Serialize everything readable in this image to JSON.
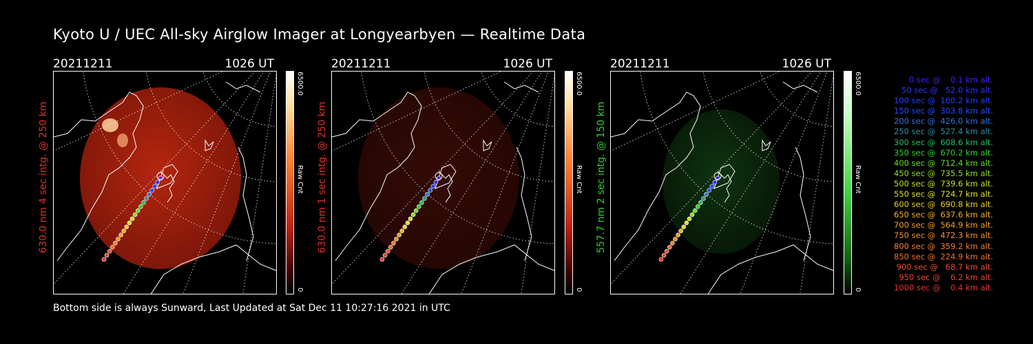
{
  "title": "Kyoto U / UEC All-sky Airglow Imager at Longyearbyen — Realtime Data",
  "footer": "Bottom side is always Sunward, Last Updated at Sat Dec 11 10:27:16 2021 in UTC",
  "panels": [
    {
      "date": "20211211",
      "time": "1026 UT",
      "side_label": "630.0 nm 4 sec intg. @ 250 km",
      "side_color": "#e03020",
      "cbar_max": "6500.0",
      "cbar_min": "0",
      "cbar_unit": "Raw Cnt",
      "tint": "red",
      "intensity": 1.0
    },
    {
      "date": "20211211",
      "time": "1026 UT",
      "side_label": "630.0 nm 1 sec intg. @ 250 km",
      "side_color": "#e03020",
      "cbar_max": "6500.0",
      "cbar_min": "0",
      "cbar_unit": "Raw Cnt",
      "tint": "red",
      "intensity": 0.25
    },
    {
      "date": "20211211",
      "time": "1026 UT",
      "side_label": "557.7 nm 2 sec intg. @ 150 km",
      "side_color": "#30d030",
      "cbar_max": "6500.0",
      "cbar_min": "0",
      "cbar_unit": "Raw Cnt",
      "tint": "green",
      "intensity": 0.5
    }
  ],
  "legend": [
    {
      "text": "   0 sec @    0.1 km alt.",
      "color": "#4020ff"
    },
    {
      "text": "  50 sec @   52.0 km alt.",
      "color": "#3030ff"
    },
    {
      "text": " 100 sec @  160.2 km alt.",
      "color": "#2040ff"
    },
    {
      "text": " 150 sec @  303.8 km alt.",
      "color": "#2050ff"
    },
    {
      "text": " 200 sec @  426.0 km alt.",
      "color": "#3070e0"
    },
    {
      "text": " 250 sec @  527.4 km alt.",
      "color": "#3090a0"
    },
    {
      "text": " 300 sec @  608.6 km alt.",
      "color": "#20c060"
    },
    {
      "text": " 350 sec @  670.2 km alt.",
      "color": "#30d030"
    },
    {
      "text": " 400 sec @  712.4 km alt.",
      "color": "#60e020"
    },
    {
      "text": " 450 sec @  735.5 km alt.",
      "color": "#90e020"
    },
    {
      "text": " 500 sec @  739.6 km alt.",
      "color": "#c0e020"
    },
    {
      "text": " 550 sec @  724.7 km alt.",
      "color": "#e0e020"
    },
    {
      "text": " 600 sec @  690.8 km alt.",
      "color": "#f0d020"
    },
    {
      "text": " 650 sec @  637.6 km alt.",
      "color": "#f0b020"
    },
    {
      "text": " 700 sec @  564.9 km alt.",
      "color": "#f0a020"
    },
    {
      "text": " 750 sec @  472.3 km alt.",
      "color": "#f09020"
    },
    {
      "text": " 800 sec @  359.2 km alt.",
      "color": "#f08030"
    },
    {
      "text": " 850 sec @  224.9 km alt.",
      "color": "#f07030"
    },
    {
      "text": " 900 sec @   68.7 km alt.",
      "color": "#f05030"
    },
    {
      "text": " 950 sec @    6.2 km alt.",
      "color": "#f04030"
    },
    {
      "text": "1000 sec @    0.4 km alt.",
      "color": "#f03030"
    }
  ]
}
